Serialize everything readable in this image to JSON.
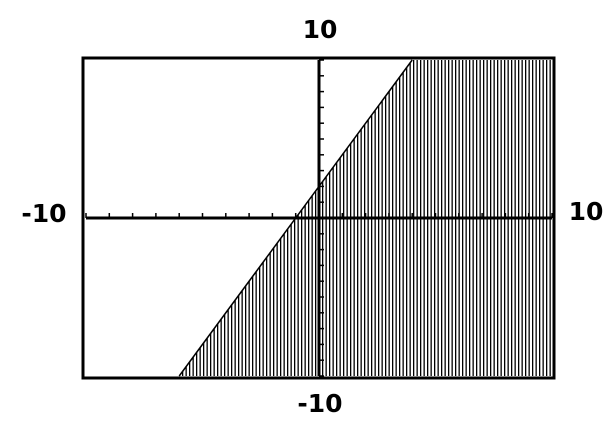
{
  "chart_data": {
    "type": "inequality",
    "x": [
      -6,
      4
    ],
    "values": [
      -10,
      10
    ],
    "fill_side": "right",
    "color": "#000000",
    "xlim": [
      -10,
      10
    ],
    "ylim": [
      -10,
      10
    ],
    "xticks": [
      -10,
      -9,
      -8,
      -7,
      -6,
      -5,
      -4,
      -3,
      -2,
      -1,
      0,
      1,
      2,
      3,
      4,
      5,
      6,
      7,
      8,
      9,
      10
    ],
    "yticks": [
      -10,
      -9,
      -8,
      -7,
      -6,
      -5,
      -4,
      -3,
      -2,
      -1,
      0,
      1,
      2,
      3,
      4,
      5,
      6,
      7,
      8,
      9,
      10
    ]
  }
}
